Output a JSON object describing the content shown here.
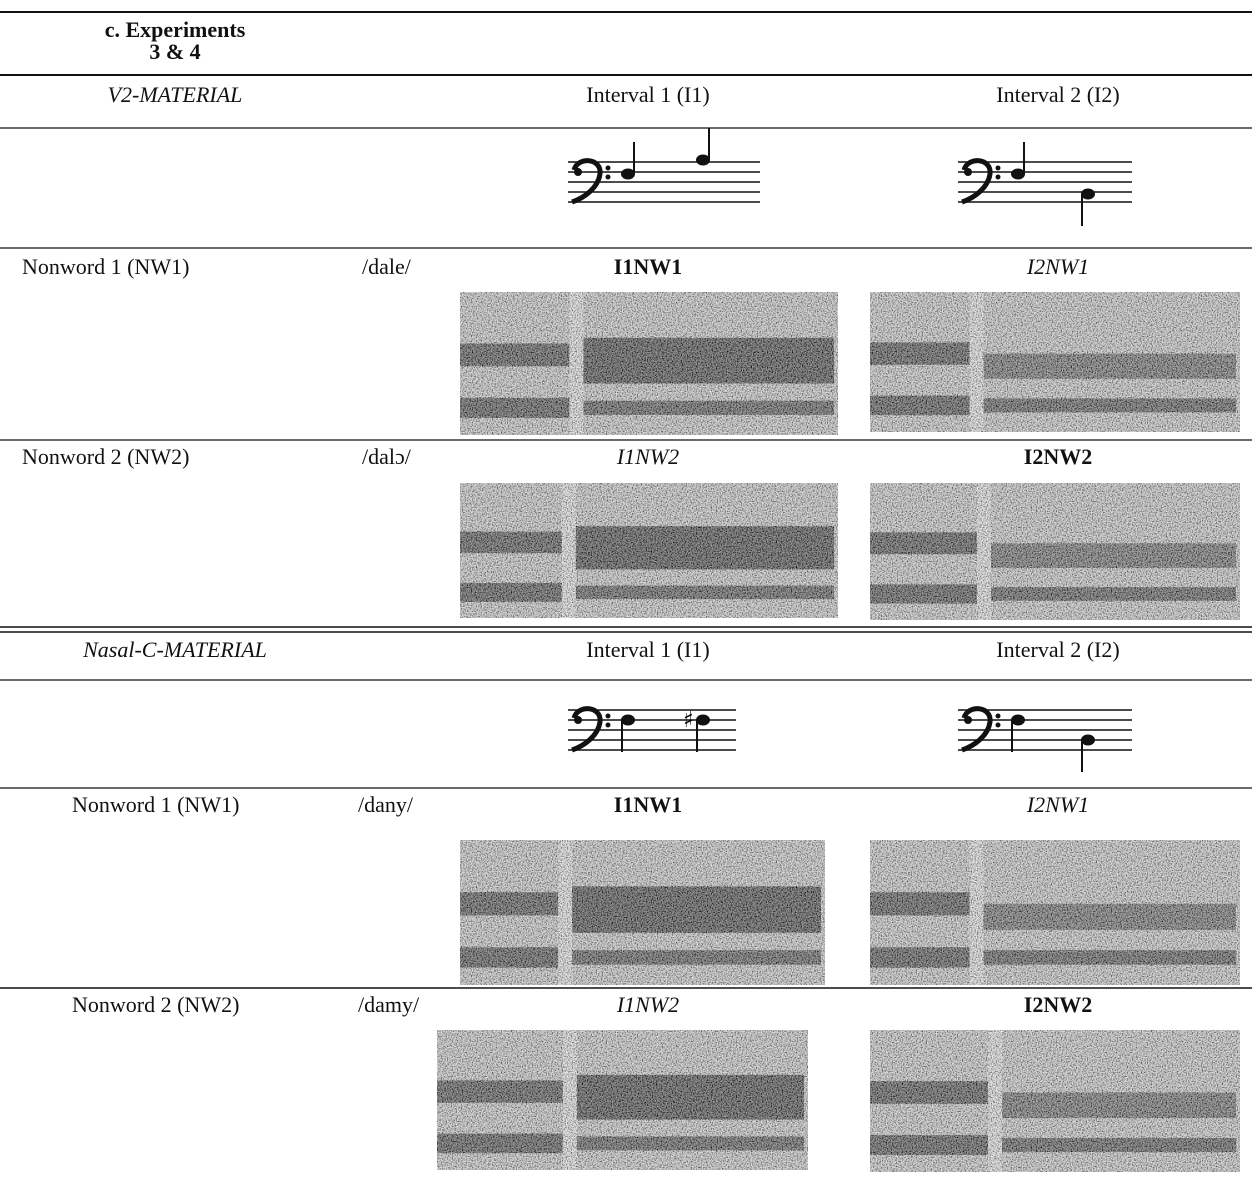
{
  "header": {
    "title_lines": [
      "c. Experiments",
      "3 & 4"
    ]
  },
  "sections": [
    {
      "label": "V2-MATERIAL",
      "intervals": [
        "Interval 1 (I1)",
        "Interval 2 (I2)"
      ],
      "rows": [
        {
          "name": "Nonword 1 (NW1)",
          "ipa": "/dale/",
          "conditions": [
            "I1NW1",
            "I2NW1"
          ]
        },
        {
          "name": "Nonword 2 (NW2)",
          "ipa": "/dalɔ/",
          "conditions": [
            "I1NW2",
            "I2NW2"
          ]
        }
      ]
    },
    {
      "label": "Nasal-C-MATERIAL",
      "intervals": [
        "Interval 1 (I1)",
        "Interval 2 (I2)"
      ],
      "rows": [
        {
          "name": "Nonword 1 (NW1)",
          "ipa": "/dany/",
          "conditions": [
            "I1NW1",
            "I2NW1"
          ]
        },
        {
          "name": "Nonword 2 (NW2)",
          "ipa": "/damy/",
          "conditions": [
            "I1NW2",
            "I2NW2"
          ]
        }
      ]
    }
  ]
}
